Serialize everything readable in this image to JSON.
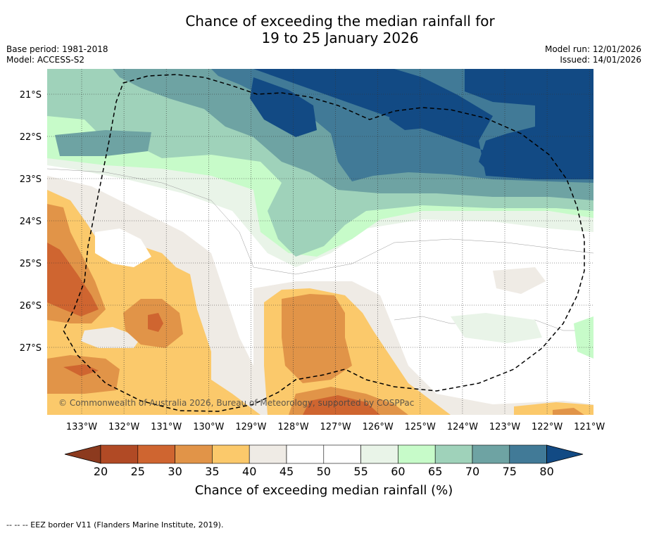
{
  "title": {
    "line1": "Chance of exceeding the median rainfall for",
    "line2": "19 to 25 January 2026"
  },
  "meta_left": {
    "base_period": "Base period: 1981-2018",
    "model": "Model: ACCESS-S2"
  },
  "meta_right": {
    "model_run": "Model run: 12/01/2026",
    "issued": "Issued: 14/01/2026"
  },
  "map": {
    "lat_labels": [
      "21°S",
      "22°S",
      "23°S",
      "24°S",
      "25°S",
      "26°S",
      "27°S"
    ],
    "lon_labels": [
      "133°W",
      "132°W",
      "131°W",
      "130°W",
      "129°W",
      "128°W",
      "127°W",
      "126°W",
      "125°W",
      "124°W",
      "123°W",
      "122°W",
      "121°W"
    ],
    "copyright": "© Commonwealth of Australia 2026, Bureau of Meteorology, supported by COSPPac",
    "eez_line_color": "#000000"
  },
  "colorbar": {
    "ticks": [
      "20",
      "25",
      "30",
      "35",
      "40",
      "45",
      "50",
      "55",
      "60",
      "65",
      "70",
      "75",
      "80"
    ],
    "label": "Chance of exceeding median rainfall (%)",
    "colors": [
      "#8c3a1e",
      "#b14a25",
      "#cf6530",
      "#e19448",
      "#fbc96b",
      "#efebe5",
      "#ffffff",
      "#ffffff",
      "#e9f4e8",
      "#c7fbc9",
      "#9fd2ba",
      "#6ea3a3",
      "#417a97",
      "#124a84"
    ]
  },
  "footnote": "--  --  -- EEZ border V11 (Flanders Marine Institute, 2019)."
}
